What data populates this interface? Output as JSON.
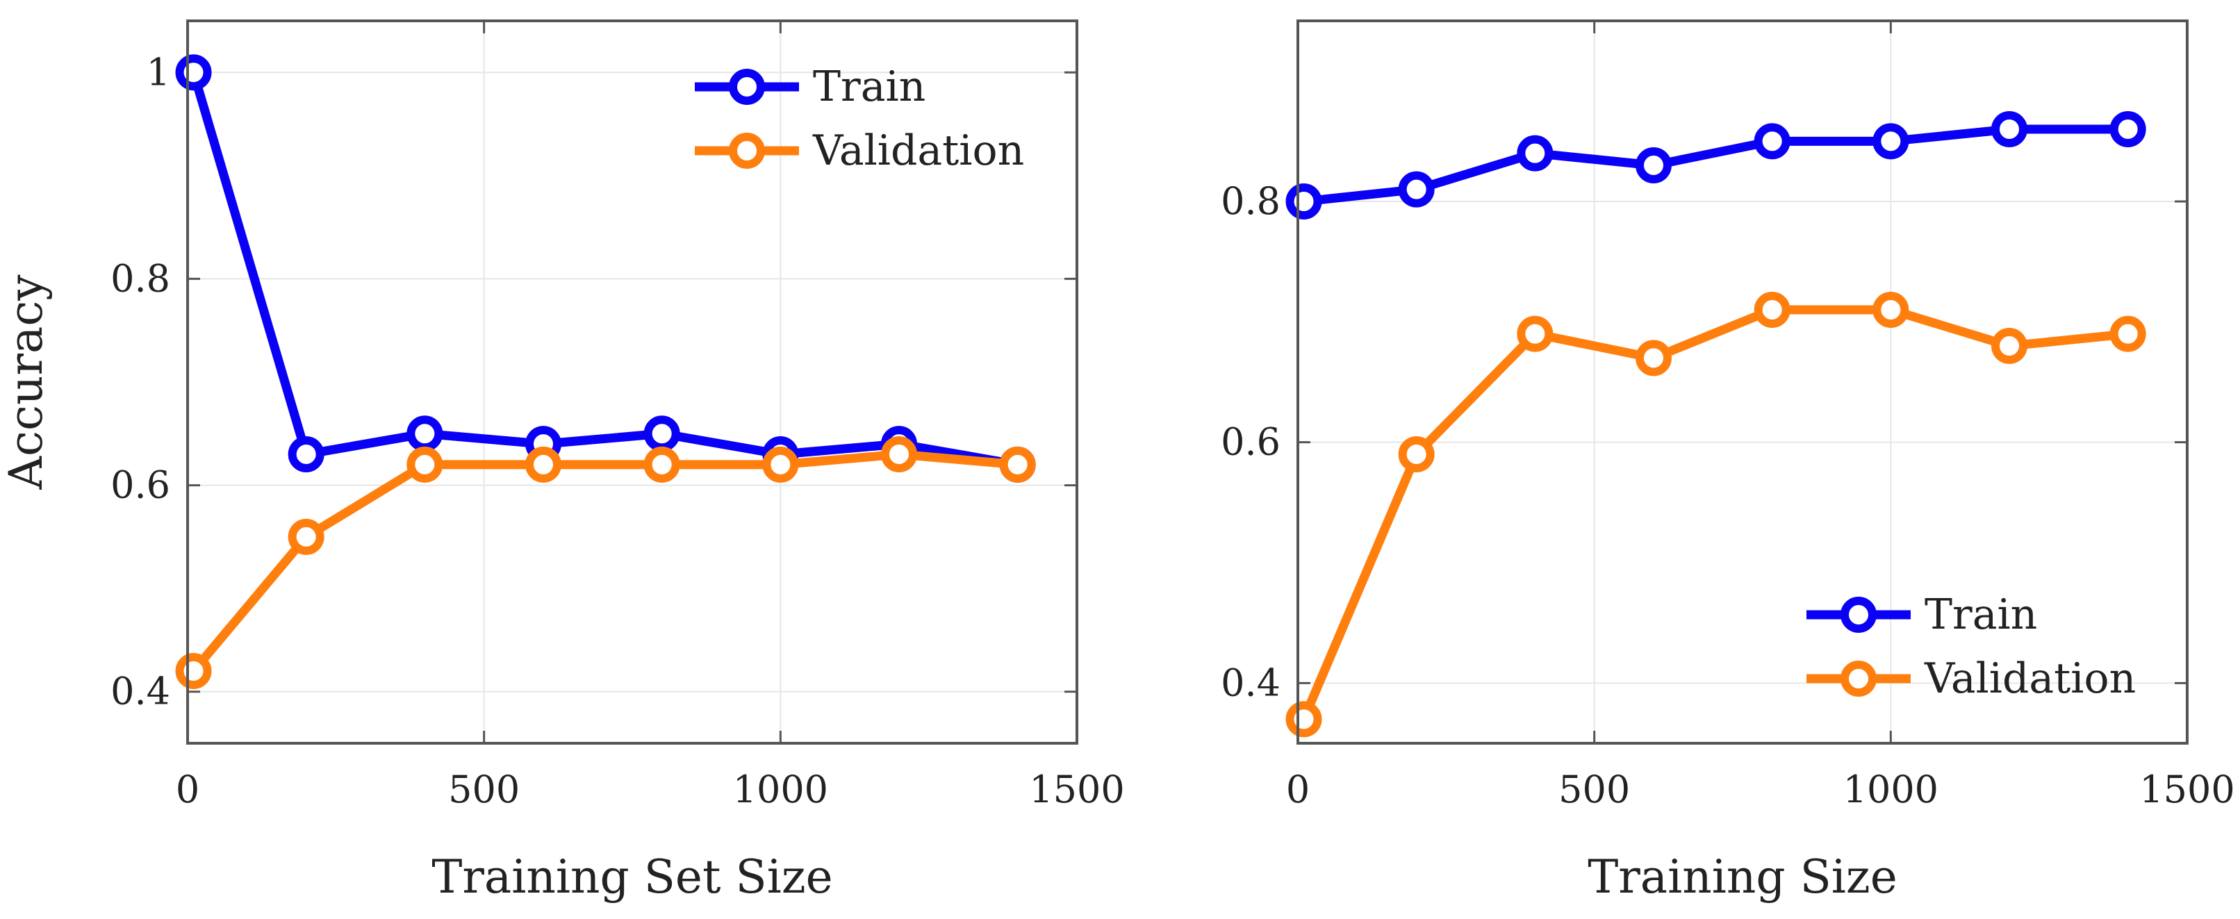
{
  "chart_data": [
    {
      "type": "line",
      "title": "",
      "xlabel": "Training Set Size",
      "ylabel": "Accuracy",
      "xlim": [
        0,
        1500
      ],
      "ylim": [
        0.35,
        1.05
      ],
      "xticks": [
        0,
        500,
        1000,
        1500
      ],
      "xtick_labels": [
        "0",
        "500",
        "1000",
        "1500"
      ],
      "yticks": [
        0.4,
        0.6,
        0.8,
        1.0
      ],
      "ytick_labels": [
        "0.4",
        "0.6",
        "0.8",
        "1"
      ],
      "grid": true,
      "legend_position": "top-right",
      "x": [
        10,
        200,
        400,
        600,
        800,
        1000,
        1200,
        1400
      ],
      "series": [
        {
          "name": "Train",
          "color": "#0a00f5",
          "values": [
            1.0,
            0.63,
            0.65,
            0.64,
            0.65,
            0.63,
            0.64,
            0.62
          ]
        },
        {
          "name": "Validation",
          "color": "#ff7f0e",
          "values": [
            0.42,
            0.55,
            0.62,
            0.62,
            0.62,
            0.62,
            0.63,
            0.62
          ]
        }
      ]
    },
    {
      "type": "line",
      "title": "",
      "xlabel": "Training Size",
      "ylabel": "",
      "xlim": [
        0,
        1500
      ],
      "ylim": [
        0.35,
        0.95
      ],
      "xticks": [
        0,
        500,
        1000,
        1500
      ],
      "xtick_labels": [
        "0",
        "500",
        "1000",
        "1500"
      ],
      "yticks": [
        0.4,
        0.6,
        0.8
      ],
      "ytick_labels": [
        "0.4",
        "0.6",
        "0.8"
      ],
      "grid": true,
      "legend_position": "bottom-right",
      "x": [
        10,
        200,
        400,
        600,
        800,
        1000,
        1200,
        1400
      ],
      "series": [
        {
          "name": "Train",
          "color": "#0a00f5",
          "values": [
            0.8,
            0.81,
            0.84,
            0.83,
            0.85,
            0.85,
            0.86,
            0.86
          ]
        },
        {
          "name": "Validation",
          "color": "#ff7f0e",
          "values": [
            0.37,
            0.59,
            0.69,
            0.67,
            0.71,
            0.71,
            0.68,
            0.69
          ]
        }
      ]
    }
  ]
}
